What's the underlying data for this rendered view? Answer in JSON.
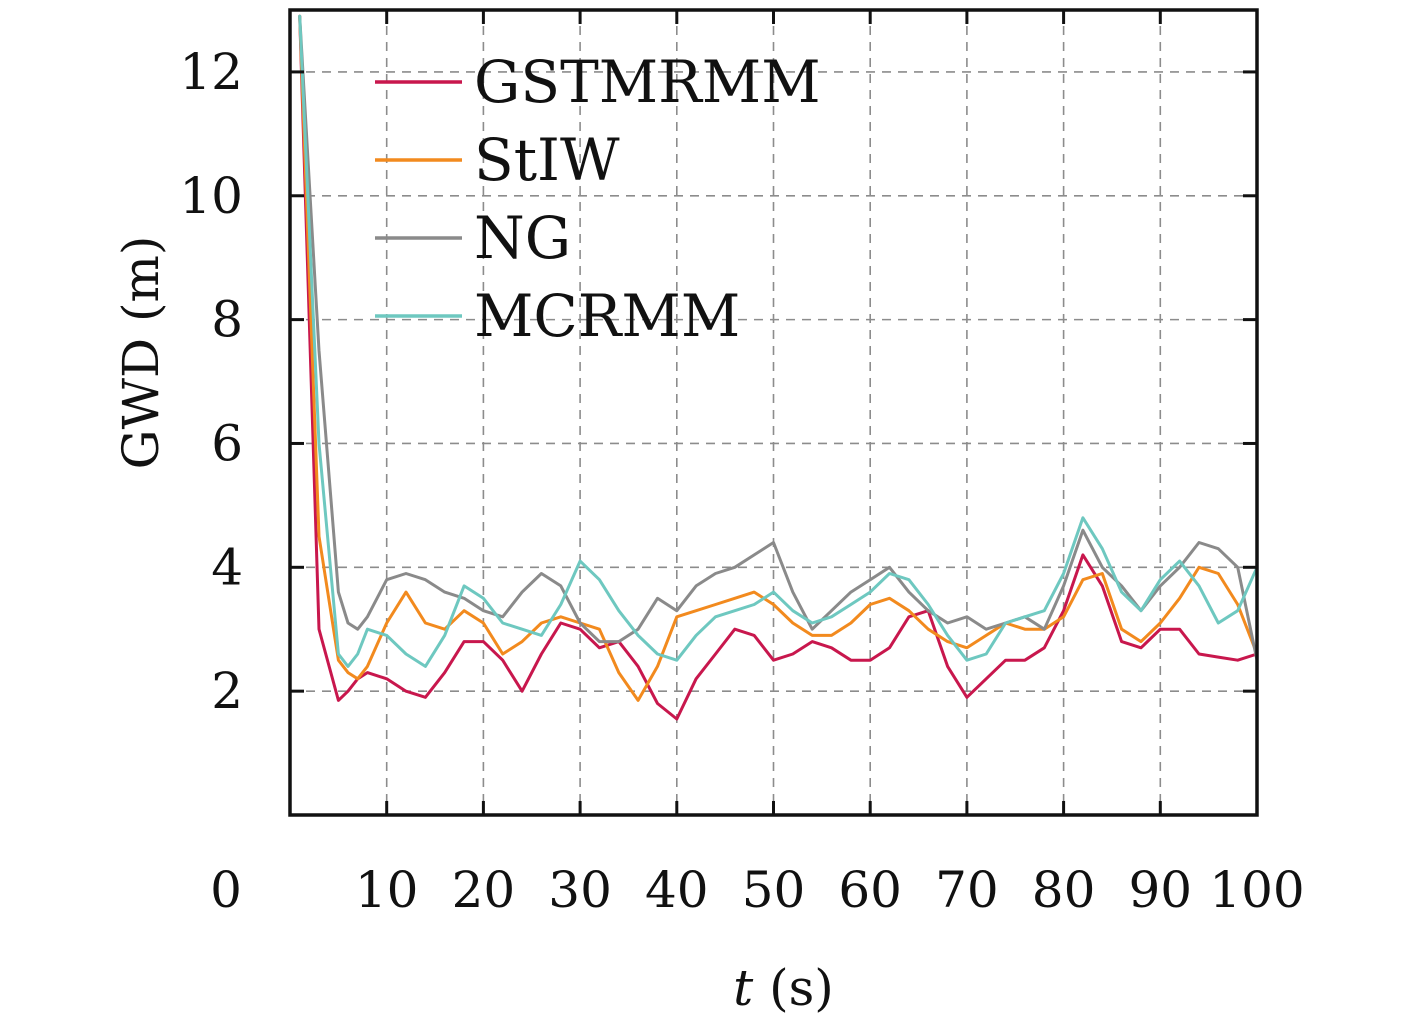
{
  "chart_data": {
    "type": "line",
    "title": "",
    "xlabel_var": "t",
    "xlabel_unit": " (s)",
    "ylabel": "GWD (m)",
    "xlim": [
      0,
      100
    ],
    "ylim": [
      0,
      13
    ],
    "origin_label": "0",
    "x_ticks": [
      10,
      20,
      30,
      40,
      50,
      60,
      70,
      80,
      90,
      100
    ],
    "x_tick_labels": [
      "10",
      "20",
      "30",
      "40",
      "50",
      "60",
      "70",
      "80",
      "90",
      "100"
    ],
    "y_ticks": [
      2,
      4,
      6,
      8,
      10,
      12
    ],
    "y_tick_labels": [
      "2",
      "4",
      "6",
      "8",
      "10",
      "12"
    ],
    "grid": true,
    "legend_position": "top-left",
    "x": [
      1,
      3,
      5,
      6,
      7,
      8,
      10,
      12,
      14,
      16,
      18,
      20,
      22,
      24,
      26,
      28,
      30,
      32,
      34,
      36,
      38,
      40,
      42,
      44,
      46,
      48,
      50,
      52,
      54,
      56,
      58,
      60,
      62,
      64,
      66,
      68,
      70,
      72,
      74,
      76,
      78,
      80,
      82,
      84,
      86,
      88,
      90,
      92,
      94,
      96,
      98,
      100
    ],
    "series": [
      {
        "name": "GSTMRMM",
        "color": "#c8174d",
        "values": [
          12.9,
          3.0,
          1.85,
          2.0,
          2.2,
          2.3,
          2.2,
          2.0,
          1.9,
          2.3,
          2.8,
          2.8,
          2.5,
          2.0,
          2.6,
          3.1,
          3.0,
          2.7,
          2.8,
          2.4,
          1.8,
          1.55,
          2.2,
          2.6,
          3.0,
          2.9,
          2.5,
          2.6,
          2.8,
          2.7,
          2.5,
          2.5,
          2.7,
          3.2,
          3.3,
          2.4,
          1.9,
          2.2,
          2.5,
          2.5,
          2.7,
          3.3,
          4.2,
          3.7,
          2.8,
          2.7,
          3.0,
          3.0,
          2.6,
          2.55,
          2.5,
          2.6
        ]
      },
      {
        "name": "StIW",
        "color": "#f28a1e",
        "values": [
          12.9,
          4.5,
          2.5,
          2.3,
          2.2,
          2.4,
          3.1,
          3.6,
          3.1,
          3.0,
          3.3,
          3.1,
          2.6,
          2.8,
          3.1,
          3.2,
          3.1,
          3.0,
          2.3,
          1.85,
          2.4,
          3.2,
          3.3,
          3.4,
          3.5,
          3.6,
          3.4,
          3.1,
          2.9,
          2.9,
          3.1,
          3.4,
          3.5,
          3.3,
          3.0,
          2.8,
          2.7,
          2.9,
          3.1,
          3.0,
          3.0,
          3.2,
          3.8,
          3.9,
          3.0,
          2.8,
          3.1,
          3.5,
          4.0,
          3.9,
          3.4,
          2.6
        ]
      },
      {
        "name": "NG",
        "color": "#8a8a8a",
        "values": [
          12.9,
          7.5,
          3.6,
          3.1,
          3.0,
          3.2,
          3.8,
          3.9,
          3.8,
          3.6,
          3.5,
          3.3,
          3.2,
          3.6,
          3.9,
          3.7,
          3.1,
          2.8,
          2.8,
          3.0,
          3.5,
          3.3,
          3.7,
          3.9,
          4.0,
          4.2,
          4.4,
          3.6,
          3.0,
          3.3,
          3.6,
          3.8,
          4.0,
          3.6,
          3.3,
          3.1,
          3.2,
          3.0,
          3.1,
          3.2,
          3.0,
          3.7,
          4.6,
          4.0,
          3.7,
          3.3,
          3.7,
          4.0,
          4.4,
          4.3,
          4.0,
          2.5
        ]
      },
      {
        "name": "MCRMM",
        "color": "#6ec8c0",
        "values": [
          12.9,
          6.0,
          2.6,
          2.4,
          2.6,
          3.0,
          2.9,
          2.6,
          2.4,
          2.9,
          3.7,
          3.5,
          3.1,
          3.0,
          2.9,
          3.4,
          4.1,
          3.8,
          3.3,
          2.9,
          2.6,
          2.5,
          2.9,
          3.2,
          3.3,
          3.4,
          3.6,
          3.3,
          3.1,
          3.2,
          3.4,
          3.6,
          3.9,
          3.8,
          3.4,
          2.9,
          2.5,
          2.6,
          3.1,
          3.2,
          3.3,
          3.9,
          4.8,
          4.3,
          3.6,
          3.3,
          3.8,
          4.1,
          3.7,
          3.1,
          3.3,
          4.0
        ]
      }
    ]
  }
}
